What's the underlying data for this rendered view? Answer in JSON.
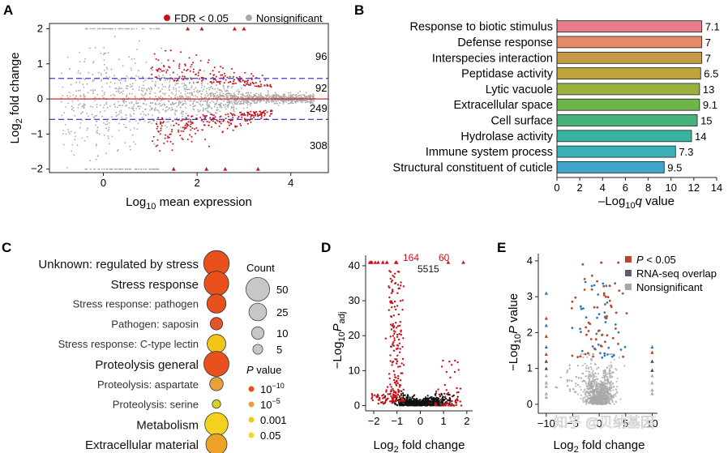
{
  "panel_labels": [
    "A",
    "B",
    "C",
    "D",
    "E"
  ],
  "watermark": "知乎 @贝纳基因",
  "colors": {
    "red": "#c8111a",
    "grey": "#a8a8a8",
    "blue_dash": "#3c3ccf",
    "black": "#111111"
  },
  "chart_data": [
    {
      "panel": "A",
      "type": "scatter",
      "xlabel_prefix": "Log",
      "xlabel_sub": "10",
      "xlabel_suffix": " mean expression",
      "ylabel_prefix": "Log",
      "ylabel_sub": "2",
      "ylabel_suffix": " fold change",
      "xlim": [
        -1.15,
        4.8
      ],
      "ylim": [
        -2.1,
        2.15
      ],
      "xticks": [
        0,
        2,
        4
      ],
      "yticks": [
        -2,
        -1,
        0,
        1,
        2
      ],
      "thresholds": [
        0.585,
        -0.585
      ],
      "legend": [
        {
          "label": "FDR < 0.05",
          "color": "#c8111a"
        },
        {
          "label": "Nonsignificant",
          "color": "#a8a8a8"
        }
      ],
      "counts": [
        "96",
        "92",
        "249",
        "308"
      ],
      "series": [
        {
          "name": "FDR < 0.05",
          "color": "#c8111a"
        },
        {
          "name": "Nonsignificant",
          "color": "#a8a8a8"
        }
      ]
    },
    {
      "panel": "B",
      "type": "bar",
      "orientation": "horizontal",
      "categories": [
        "Response to biotic stimulus",
        "Defense response",
        "Interspecies interaction",
        "Peptidase activity",
        "Lytic vacuole",
        "Extracellular space",
        "Cell surface",
        "Hydrolase activity",
        "Immune system process",
        "Structural constituent of cuticle"
      ],
      "values": [
        12.7,
        12.7,
        12.7,
        12.6,
        12.5,
        12.5,
        12.3,
        11.8,
        10.4,
        9.4
      ],
      "labels": [
        "7.1",
        "7",
        "7",
        "6.5",
        "13",
        "9.1",
        "15",
        "14",
        "7.3",
        "9.5"
      ],
      "colors": [
        "#e87b8c",
        "#e48a6a",
        "#c69848",
        "#bca33a",
        "#9ab23d",
        "#6fb64a",
        "#45b27a",
        "#37b39e",
        "#3ab0b8",
        "#3ea6cb"
      ],
      "xlabel_prefix": "–Log",
      "xlabel_sub": "10",
      "xlabel_italic": "q",
      "xlabel_suffix": " value",
      "xlim": [
        0,
        14
      ],
      "xticks": [
        0,
        2,
        4,
        6,
        8,
        10,
        12,
        14
      ]
    },
    {
      "panel": "C",
      "type": "scatter",
      "subtype": "dot-plot",
      "categories": [
        "Unknown: regulated by stress",
        "Stress response",
        "Stress response: pathogen",
        "Pathogen: saposin",
        "Stress response: C-type lectin",
        "Proteolysis general",
        "Proteolysis: aspartate",
        "Proteolysis: serine",
        "Metabolism",
        "Extracellular material"
      ],
      "emphasis": [
        true,
        true,
        false,
        false,
        false,
        true,
        false,
        false,
        true,
        true
      ],
      "count": [
        60,
        55,
        30,
        10,
        28,
        58,
        12,
        3,
        48,
        38
      ],
      "p_value_color": [
        "#e8501e",
        "#e8501e",
        "#e8501e",
        "#e2542a",
        "#f2c619",
        "#e8501e",
        "#e8a03a",
        "#d8d12a",
        "#f4d11c",
        "#eca227"
      ],
      "size_legend": {
        "title": "Count",
        "values": [
          "50",
          "25",
          "10",
          "5"
        ]
      },
      "color_legend": {
        "title_italic": "P",
        "title_suffix": " value",
        "entries": [
          {
            "base": "10",
            "exp": "−10",
            "color": "#e8501e"
          },
          {
            "base": "10",
            "exp": "−5",
            "color": "#e8a03a"
          },
          {
            "base": "0.001",
            "exp": "",
            "color": "#f2c619"
          },
          {
            "base": "0.05",
            "exp": "",
            "color": "#f4d92a"
          }
        ]
      }
    },
    {
      "panel": "D",
      "type": "scatter",
      "subtype": "volcano",
      "xlabel_prefix": "Log",
      "xlabel_sub": "2",
      "xlabel_suffix": " fold change",
      "ylabel_prefix": "−Log",
      "ylabel_sub": "10",
      "ylabel_italic": "P",
      "ylabel_italic_sub": "adj",
      "xlim": [
        -2.35,
        2.25
      ],
      "ylim": [
        -1.5,
        43
      ],
      "xticks": [
        -2,
        -1,
        0,
        1,
        2
      ],
      "yticks": [
        0,
        10,
        20,
        30,
        40
      ],
      "counts": [
        {
          "label": "164",
          "color": "#c8111a"
        },
        {
          "label": "60",
          "color": "#c8111a"
        },
        {
          "label": "5515",
          "color": "#111111"
        }
      ],
      "series": [
        {
          "name": "significant",
          "color": "#c8111a"
        },
        {
          "name": "not significant",
          "color": "#111111"
        }
      ]
    },
    {
      "panel": "E",
      "type": "scatter",
      "subtype": "volcano",
      "xlabel_prefix": "Log",
      "xlabel_sub": "2",
      "xlabel_suffix": " fold change",
      "ylabel_prefix": "−Log",
      "ylabel_sub": "10",
      "ylabel_italic": "P",
      "ylabel_suffix": " value",
      "xlim": [
        -11.5,
        11
      ],
      "ylim": [
        -0.25,
        4.2
      ],
      "xticks": [
        -10,
        -5,
        0,
        5,
        10
      ],
      "xtick_labels": [
        "−10",
        "−5",
        "0",
        "5",
        "10"
      ],
      "yticks": [
        0,
        1,
        2,
        3,
        4
      ],
      "legend": [
        {
          "label_italic": "P",
          "label": " < 0.05",
          "color": "#b7472d"
        },
        {
          "label_italic": "",
          "label": "RNA-seq overlap",
          "color": "#5d5f70"
        },
        {
          "label_italic": "",
          "label": "Nonsignificant",
          "color": "#a8a8a8"
        }
      ],
      "series": [
        {
          "name": "P < 0.05",
          "color": "#b7472d"
        },
        {
          "name": "RNA-seq overlap",
          "color": "#2f7bb8"
        },
        {
          "name": "Nonsignificant",
          "color": "#a8a8a8"
        }
      ]
    }
  ]
}
